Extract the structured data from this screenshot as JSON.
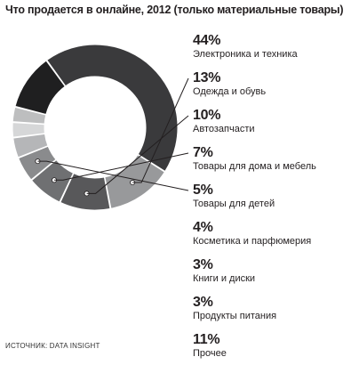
{
  "chart_data": {
    "type": "pie",
    "title": "Что продается в онлайне, 2012 (только материальные товары)",
    "slices": [
      {
        "label": "Электроника и техника",
        "value": 44,
        "pct_text": "44%",
        "color": "#3a3a3c",
        "pointer": false
      },
      {
        "label": "Одежда и обувь",
        "value": 13,
        "pct_text": "13%",
        "color": "#98999b",
        "pointer": true
      },
      {
        "label": "Автозапчасти",
        "value": 10,
        "pct_text": "10%",
        "color": "#58585a",
        "pointer": true
      },
      {
        "label": "Товары для дома и мебель",
        "value": 7,
        "pct_text": "7%",
        "color": "#6f7072",
        "pointer": true
      },
      {
        "label": "Товары для детей",
        "value": 5,
        "pct_text": "5%",
        "color": "#8a8b8d",
        "pointer": true
      },
      {
        "label": "Косметика и парфюмерия",
        "value": 4,
        "pct_text": "4%",
        "color": "#b5b6b8",
        "pointer": false
      },
      {
        "label": "Книги и диски",
        "value": 3,
        "pct_text": "3%",
        "color": "#d6d7d8",
        "pointer": false
      },
      {
        "label": "Продукты питания",
        "value": 3,
        "pct_text": "3%",
        "color": "#bdbebf",
        "pointer": false
      },
      {
        "label": "Прочее",
        "value": 11,
        "pct_text": "11%",
        "color": "#1f1f20",
        "pointer": false
      }
    ]
  },
  "source": "ИСТОЧНИК: DATA INSIGHT"
}
